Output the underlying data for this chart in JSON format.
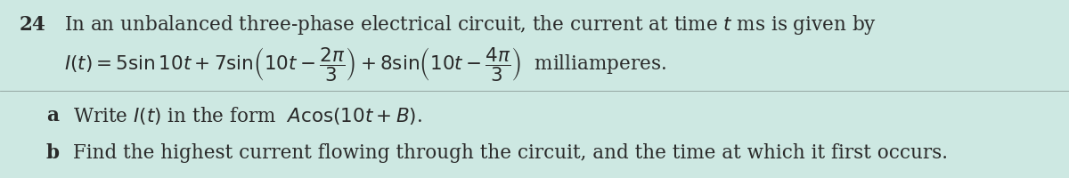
{
  "background_color": "#cde8e2",
  "figure_width": 12.0,
  "figure_height": 2.01,
  "dpi": 100,
  "number": "24",
  "text_color": "#2a2a2a",
  "line1": "In an unbalanced three-phase electrical circuit, the current at time $t$ ms is given by",
  "line2_prefix": "$I(t) = 5\\sin 10t + 7\\sin\\!\\left(10t - \\dfrac{2\\pi}{3}\\right) + 8\\sin\\!\\left(10t - \\dfrac{4\\pi}{3}\\right)$  milliamperes.",
  "part_a_text": "Write $I(t)$ in the form  $A\\cos(10t + B)$.",
  "part_b_text": "Find the highest current flowing through the circuit, and the time at which it first occurs."
}
